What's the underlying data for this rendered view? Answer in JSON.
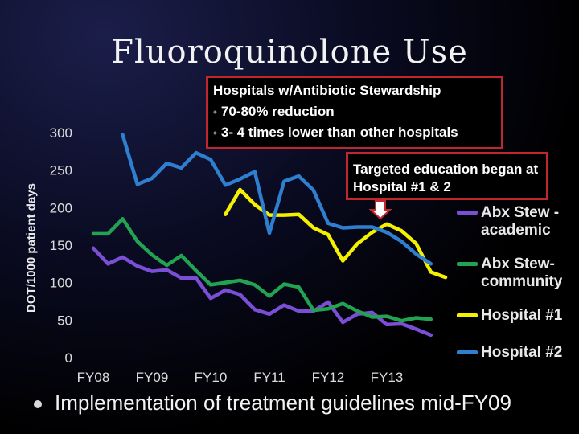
{
  "title": "Fluoroquinolone Use",
  "callout_stewardship": {
    "heading": "Hospitals w/Antibiotic Stewardship",
    "bullets": [
      "70-80% reduction",
      "3- 4 times lower than other hospitals"
    ]
  },
  "callout_education": "Targeted education began at Hospital #1 & 2",
  "footer_bullet": "Implementation of treatment guidelines mid-FY09",
  "colors": {
    "abx_academic": "#7a4fd6",
    "abx_community": "#22a352",
    "hospital1": "#f4f000",
    "hospital2": "#2f7fd0",
    "callout_border": "#c0272d"
  },
  "chart_data": {
    "type": "line",
    "ylabel": "DOT/1000 patient days",
    "xlabel": "",
    "ylim": [
      0,
      300
    ],
    "yticks": [
      0,
      50,
      100,
      150,
      200,
      250,
      300
    ],
    "x_tick_labels": [
      "FY08",
      "FY09",
      "FY10",
      "FY11",
      "FY12",
      "FY13"
    ],
    "points_per_year": 4,
    "grid": false,
    "legend_position": "right",
    "series": [
      {
        "name": "Abx Stew - academic",
        "color_key": "abx_academic",
        "start_index": 0,
        "values": [
          145,
          124,
          133,
          121,
          114,
          116,
          105,
          105,
          78,
          89,
          83,
          63,
          57,
          69,
          61,
          61,
          73,
          46,
          57,
          59,
          43,
          44,
          37,
          29
        ]
      },
      {
        "name": "Abx Stew- community",
        "color_key": "abx_community",
        "start_index": 0,
        "values": [
          164,
          164,
          184,
          154,
          136,
          122,
          135,
          115,
          96,
          99,
          102,
          96,
          81,
          97,
          93,
          62,
          64,
          71,
          61,
          53,
          54,
          48,
          52,
          50
        ]
      },
      {
        "name": "Hospital #1",
        "color_key": "hospital1",
        "start_index": 9,
        "values": [
          190,
          223,
          203,
          189,
          189,
          190,
          172,
          163,
          128,
          151,
          166,
          177,
          168,
          151,
          113,
          106
        ]
      },
      {
        "name": "Hospital #2",
        "color_key": "hospital2",
        "start_index": 2,
        "values": [
          296,
          230,
          238,
          258,
          252,
          272,
          263,
          229,
          237,
          247,
          165,
          234,
          241,
          222,
          178,
          172,
          173,
          173,
          166,
          154,
          137,
          124
        ]
      }
    ]
  }
}
